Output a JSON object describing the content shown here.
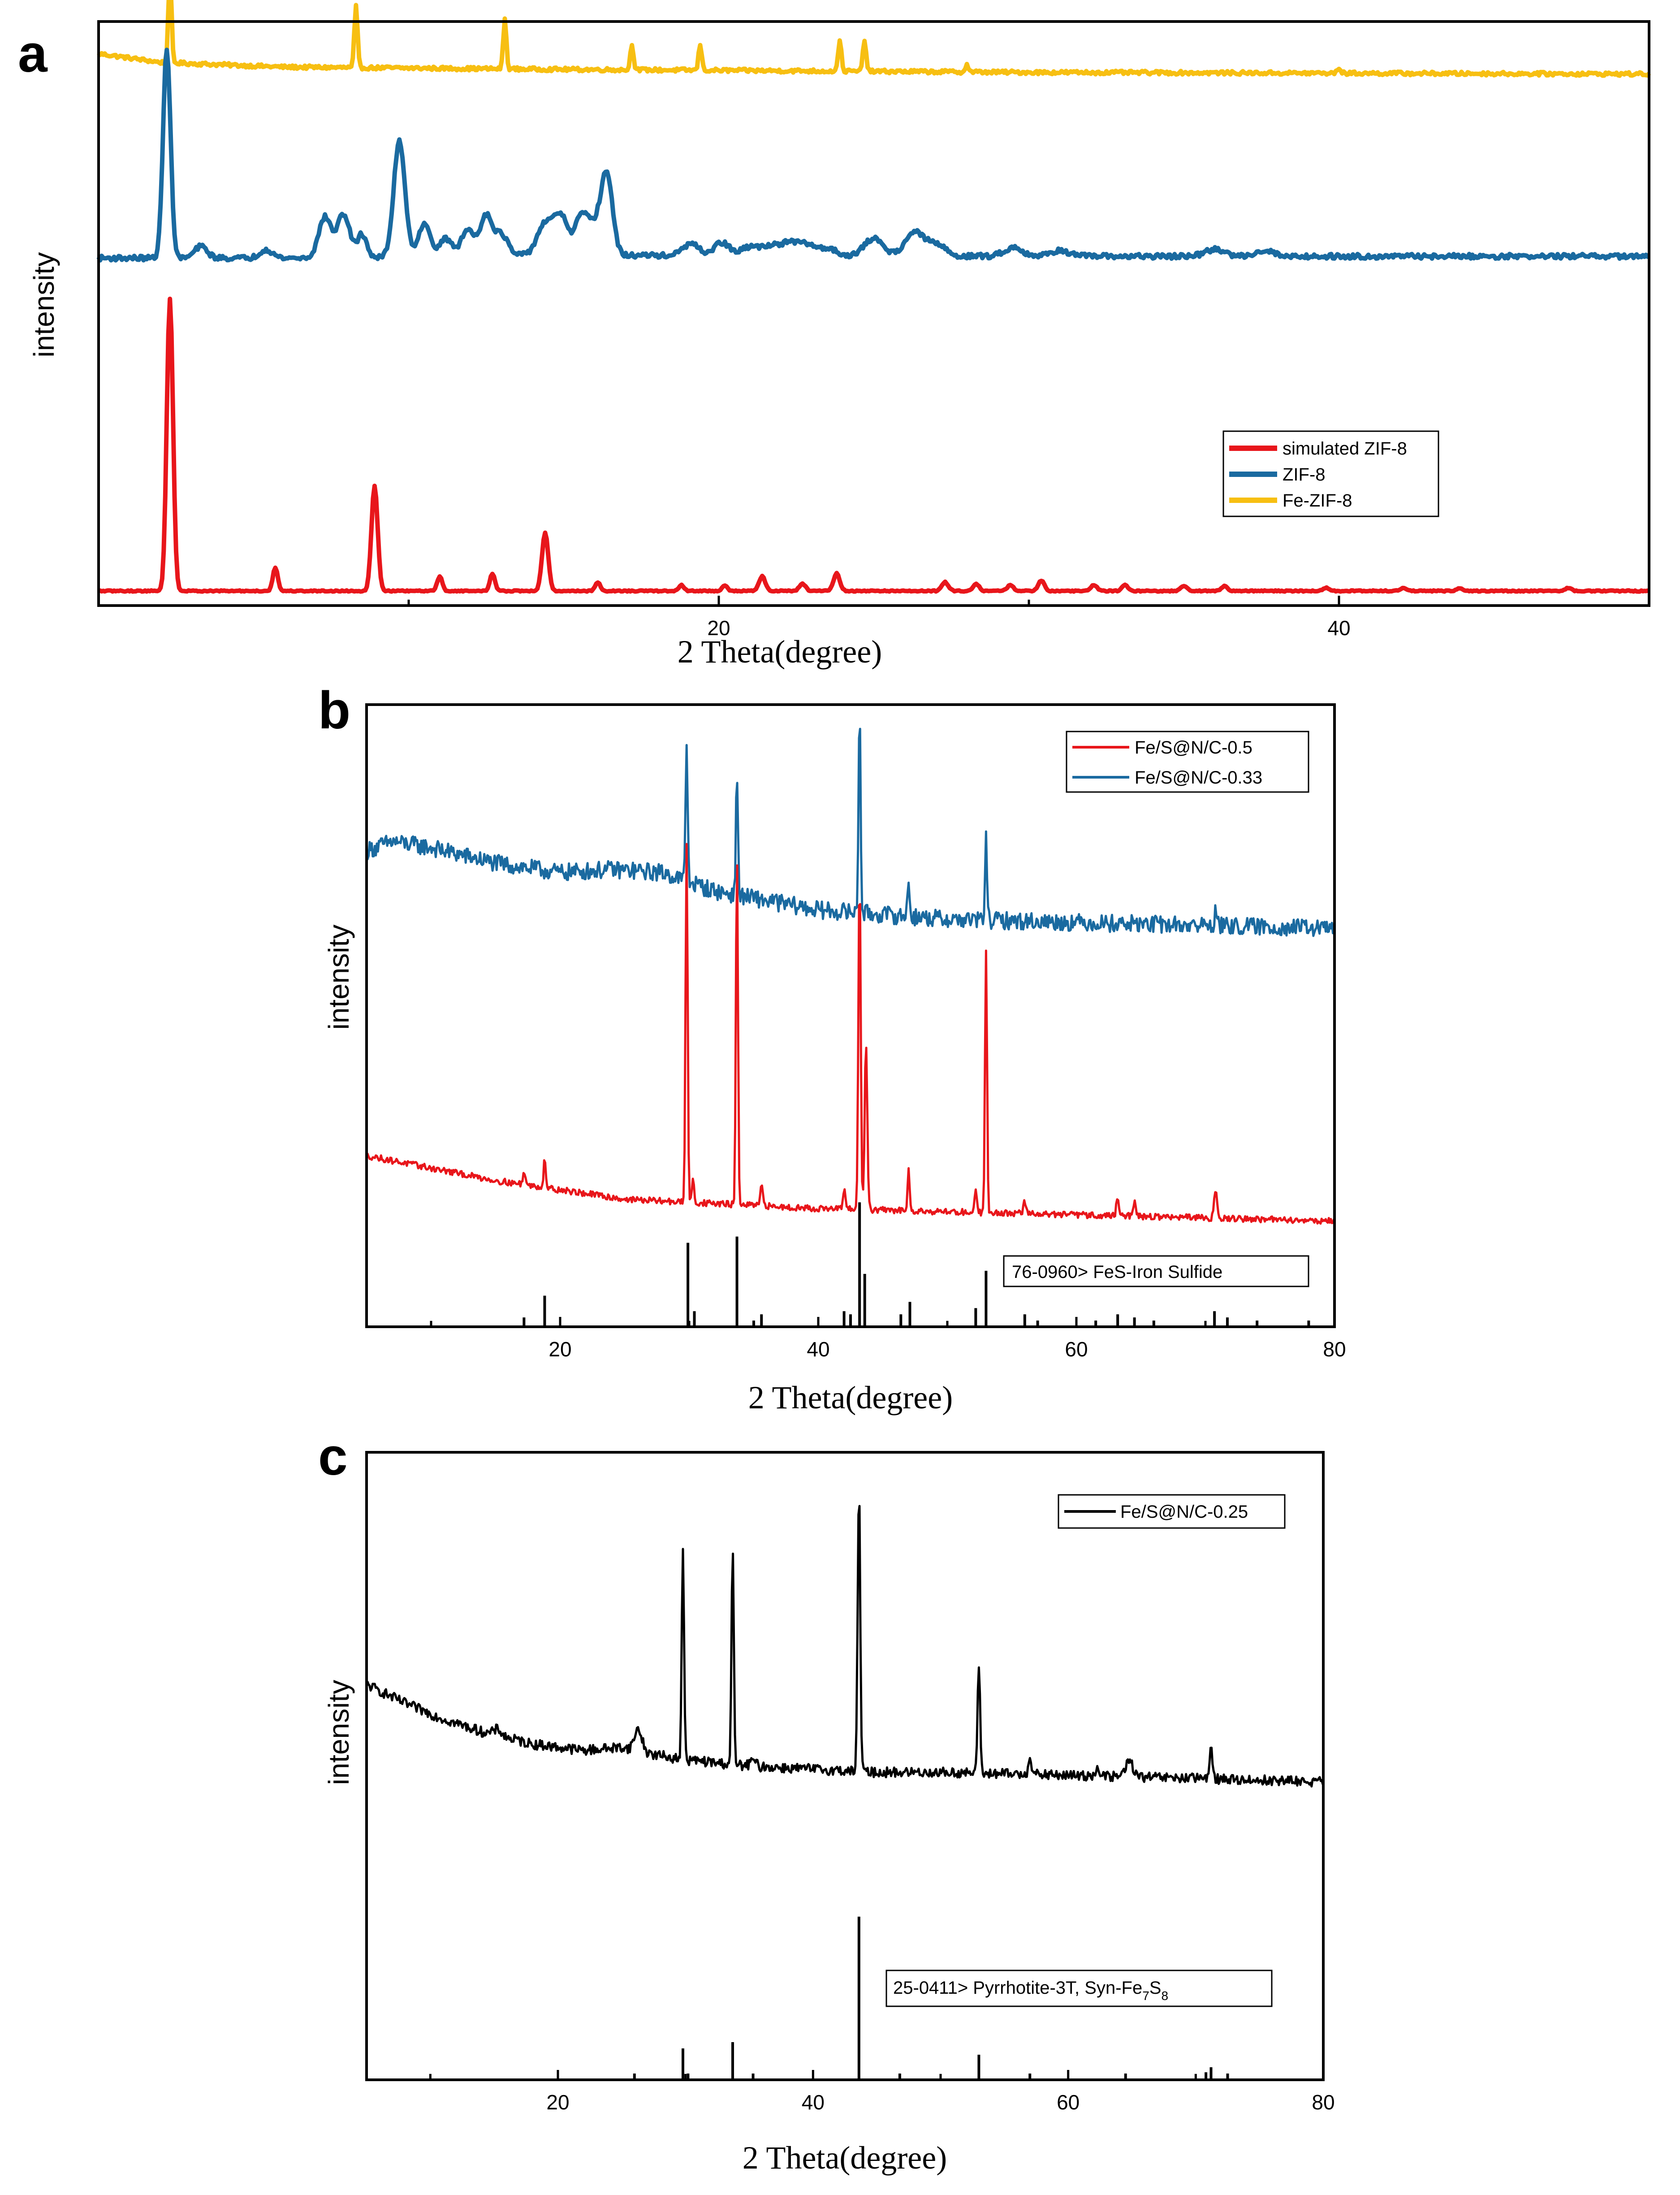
{
  "chart_data": [
    {
      "panel": "a",
      "type": "line",
      "xlabel": "2 Theta(degree)",
      "ylabel": "intensity",
      "xlim": [
        0,
        50
      ],
      "xticks": [
        20,
        40
      ],
      "tick_labels": [
        "20",
        "40"
      ],
      "legend": {
        "placement": "center-right",
        "entries": [
          {
            "label": "simulated ZIF-8",
            "color": "#e8161b"
          },
          {
            "label": "ZIF-8",
            "color": "#1a6aa0"
          },
          {
            "label": "Fe-ZIF-8",
            "color": "#f7bf12"
          }
        ]
      },
      "series": [
        {
          "name": "Fe-ZIF-8",
          "color": "#f7bf12",
          "noise": 0.003,
          "baseline": [
            [
              0,
              0.945
            ],
            [
              2,
              0.93
            ],
            [
              6,
              0.922
            ],
            [
              15,
              0.918
            ],
            [
              30,
              0.913
            ],
            [
              50,
              0.91
            ]
          ],
          "peaks": [
            [
              2.3,
              0.155,
              0.05
            ],
            [
              8.3,
              0.105,
              0.05
            ],
            [
              13.1,
              0.085,
              0.05
            ],
            [
              17.2,
              0.045,
              0.05
            ],
            [
              19.4,
              0.045,
              0.05
            ],
            [
              23.9,
              0.055,
              0.05
            ],
            [
              24.7,
              0.055,
              0.05
            ],
            [
              28.0,
              0.012,
              0.05
            ],
            [
              40.0,
              0.01,
              0.05
            ]
          ]
        },
        {
          "name": "ZIF-8",
          "color": "#1a6aa0",
          "noise": 0.004,
          "baseline": [
            [
              0,
              0.595
            ],
            [
              8,
              0.595
            ],
            [
              14,
              0.6
            ],
            [
              30,
              0.598
            ],
            [
              50,
              0.598
            ]
          ],
          "peaks": [
            [
              2.2,
              0.36,
              0.12
            ],
            [
              3.3,
              0.02,
              0.2
            ],
            [
              5.4,
              0.015,
              0.2
            ],
            [
              7.3,
              0.07,
              0.2
            ],
            [
              7.9,
              0.075,
              0.2
            ],
            [
              8.5,
              0.04,
              0.15
            ],
            [
              9.7,
              0.2,
              0.18
            ],
            [
              10.5,
              0.055,
              0.2
            ],
            [
              11.2,
              0.03,
              0.2
            ],
            [
              11.9,
              0.045,
              0.2
            ],
            [
              12.5,
              0.07,
              0.2
            ],
            [
              13.0,
              0.035,
              0.2
            ],
            [
              14.4,
              0.055,
              0.25
            ],
            [
              14.9,
              0.065,
              0.2
            ],
            [
              15.6,
              0.07,
              0.25
            ],
            [
              16.1,
              0.04,
              0.2
            ],
            [
              16.4,
              0.13,
              0.18
            ],
            [
              19.1,
              0.02,
              0.25
            ],
            [
              20.1,
              0.022,
              0.25
            ],
            [
              21.0,
              0.015,
              0.25
            ],
            [
              21.6,
              0.015,
              0.25
            ],
            [
              22.2,
              0.02,
              0.3
            ],
            [
              22.8,
              0.018,
              0.3
            ],
            [
              23.5,
              0.012,
              0.3
            ],
            [
              25.0,
              0.03,
              0.3
            ],
            [
              26.3,
              0.04,
              0.3
            ],
            [
              27.0,
              0.02,
              0.3
            ],
            [
              29.5,
              0.015,
              0.3
            ],
            [
              31.0,
              0.01,
              0.3
            ],
            [
              36.0,
              0.012,
              0.3
            ],
            [
              37.6,
              0.01,
              0.3
            ]
          ]
        },
        {
          "name": "simulated ZIF-8",
          "color": "#e8161b",
          "noise": 0.001,
          "baseline": [
            [
              0,
              0.025
            ],
            [
              50,
              0.025
            ]
          ],
          "peaks": [
            [
              2.3,
              0.5,
              0.1
            ],
            [
              5.7,
              0.04,
              0.08
            ],
            [
              8.9,
              0.18,
              0.1
            ],
            [
              11.0,
              0.025,
              0.08
            ],
            [
              12.7,
              0.03,
              0.08
            ],
            [
              14.4,
              0.1,
              0.1
            ],
            [
              16.1,
              0.015,
              0.08
            ],
            [
              18.8,
              0.01,
              0.08
            ],
            [
              20.2,
              0.01,
              0.08
            ],
            [
              21.4,
              0.025,
              0.1
            ],
            [
              22.7,
              0.012,
              0.1
            ],
            [
              23.8,
              0.03,
              0.1
            ],
            [
              27.3,
              0.015,
              0.1
            ],
            [
              28.3,
              0.012,
              0.1
            ],
            [
              29.4,
              0.01,
              0.1
            ],
            [
              30.4,
              0.018,
              0.1
            ],
            [
              32.1,
              0.01,
              0.1
            ],
            [
              33.1,
              0.01,
              0.1
            ],
            [
              35.0,
              0.008,
              0.1
            ],
            [
              36.3,
              0.008,
              0.1
            ],
            [
              39.6,
              0.005,
              0.1
            ],
            [
              42.1,
              0.005,
              0.1
            ],
            [
              43.9,
              0.005,
              0.1
            ],
            [
              47.4,
              0.005,
              0.1
            ]
          ]
        }
      ]
    },
    {
      "panel": "b",
      "type": "line",
      "xlabel": "2 Theta(degree)",
      "ylabel": "intensity",
      "xlim": [
        5,
        80
      ],
      "xticks": [
        20,
        40,
        60,
        80
      ],
      "tick_labels": [
        "20",
        "40",
        "60",
        "80"
      ],
      "legend": {
        "placement": "top-right",
        "entries": [
          {
            "label": "Fe/S@N/C-0.5",
            "color": "#e8161b"
          },
          {
            "label": "Fe/S@N/C-0.33",
            "color": "#1a6aa0"
          }
        ]
      },
      "reference_label": "76-0960>  FeS-Iron Sulfide",
      "reference_lines": [
        [
          17.2,
          0.015
        ],
        [
          18.8,
          0.05
        ],
        [
          29.9,
          0.135
        ],
        [
          30.4,
          0.025
        ],
        [
          33.7,
          0.145
        ],
        [
          35.0,
          0.01
        ],
        [
          35.6,
          0.02
        ],
        [
          42.0,
          0.025
        ],
        [
          42.5,
          0.02
        ],
        [
          43.2,
          0.2
        ],
        [
          43.6,
          0.085
        ],
        [
          46.4,
          0.02
        ],
        [
          47.1,
          0.04
        ],
        [
          52.2,
          0.03
        ],
        [
          53.0,
          0.09
        ],
        [
          56.0,
          0.02
        ],
        [
          57.0,
          0.01
        ],
        [
          61.5,
          0.01
        ],
        [
          63.2,
          0.02
        ],
        [
          64.5,
          0.015
        ],
        [
          66.0,
          0.01
        ],
        [
          70.7,
          0.025
        ],
        [
          71.7,
          0.015
        ],
        [
          74.0,
          0.01
        ],
        [
          78.0,
          0.01
        ]
      ],
      "series": [
        {
          "name": "Fe/S@N/C-0.33",
          "color": "#1a6aa0",
          "noise": 0.014,
          "baseline": [
            [
              5,
              0.765
            ],
            [
              7,
              0.78
            ],
            [
              10,
              0.77
            ],
            [
              15,
              0.745
            ],
            [
              20,
              0.73
            ],
            [
              24,
              0.735
            ],
            [
              28,
              0.73
            ],
            [
              32,
              0.7
            ],
            [
              40,
              0.67
            ],
            [
              50,
              0.655
            ],
            [
              60,
              0.65
            ],
            [
              70,
              0.645
            ],
            [
              80,
              0.64
            ]
          ],
          "peaks": [
            [
              29.8,
              0.22,
              0.08
            ],
            [
              33.7,
              0.19,
              0.08
            ],
            [
              43.2,
              0.33,
              0.08
            ],
            [
              47.0,
              0.06,
              0.08
            ],
            [
              53.0,
              0.13,
              0.08
            ],
            [
              70.8,
              0.025,
              0.1
            ]
          ]
        },
        {
          "name": "Fe/S@N/C-0.5",
          "color": "#e8161b",
          "noise": 0.005,
          "baseline": [
            [
              5,
              0.275
            ],
            [
              10,
              0.255
            ],
            [
              15,
              0.235
            ],
            [
              20,
              0.22
            ],
            [
              25,
              0.205
            ],
            [
              30,
              0.2
            ],
            [
              40,
              0.19
            ],
            [
              50,
              0.185
            ],
            [
              60,
              0.18
            ],
            [
              70,
              0.175
            ],
            [
              80,
              0.17
            ]
          ],
          "peaks": [
            [
              17.2,
              0.02,
              0.1
            ],
            [
              18.8,
              0.05,
              0.08
            ],
            [
              29.8,
              0.58,
              0.08
            ],
            [
              30.3,
              0.04,
              0.08
            ],
            [
              33.7,
              0.56,
              0.08
            ],
            [
              35.6,
              0.03,
              0.1
            ],
            [
              42.0,
              0.03,
              0.1
            ],
            [
              43.2,
              0.54,
              0.09
            ],
            [
              43.7,
              0.27,
              0.1
            ],
            [
              47.0,
              0.07,
              0.08
            ],
            [
              52.2,
              0.04,
              0.08
            ],
            [
              53.0,
              0.42,
              0.08
            ],
            [
              56.0,
              0.02,
              0.1
            ],
            [
              63.2,
              0.03,
              0.1
            ],
            [
              64.5,
              0.025,
              0.1
            ],
            [
              70.8,
              0.045,
              0.12
            ]
          ]
        }
      ]
    },
    {
      "panel": "c",
      "type": "line",
      "xlabel": "2 Theta(degree)",
      "ylabel": "intensity",
      "xlim": [
        5,
        80
      ],
      "xticks": [
        20,
        40,
        60,
        80
      ],
      "tick_labels": [
        "20",
        "40",
        "60",
        "80"
      ],
      "legend": {
        "placement": "top-right",
        "entries": [
          {
            "label": "Fe/S@N/C-0.25",
            "color": "#000000"
          }
        ]
      },
      "reference_label": {
        "prefix": "25-0411>  Pyrrhotite-3T, Syn-Fe",
        "sub1": "7",
        "mid": "S",
        "sub2": "8"
      },
      "reference_lines": [
        [
          26.0,
          0.01
        ],
        [
          29.8,
          0.05
        ],
        [
          30.2,
          0.01
        ],
        [
          33.7,
          0.06
        ],
        [
          35.3,
          0.01
        ],
        [
          43.6,
          0.26
        ],
        [
          46.8,
          0.01
        ],
        [
          53.0,
          0.04
        ],
        [
          57.0,
          0.01
        ],
        [
          64.5,
          0.01
        ],
        [
          70.8,
          0.012
        ],
        [
          71.2,
          0.02
        ],
        [
          72.5,
          0.01
        ]
      ],
      "series": [
        {
          "name": "Fe/S@N/C-0.25",
          "color": "#000000",
          "noise": 0.008,
          "baseline": [
            [
              5,
              0.63
            ],
            [
              8,
              0.6
            ],
            [
              11,
              0.575
            ],
            [
              14,
              0.555
            ],
            [
              18,
              0.535
            ],
            [
              22,
              0.525
            ],
            [
              25,
              0.53
            ],
            [
              27,
              0.52
            ],
            [
              30,
              0.51
            ],
            [
              35,
              0.5
            ],
            [
              40,
              0.495
            ],
            [
              45,
              0.49
            ],
            [
              50,
              0.49
            ],
            [
              60,
              0.485
            ],
            [
              70,
              0.48
            ],
            [
              80,
              0.475
            ]
          ],
          "peaks": [
            [
              15.3,
              0.01,
              0.3
            ],
            [
              26.3,
              0.035,
              0.3
            ],
            [
              29.8,
              0.33,
              0.09
            ],
            [
              33.7,
              0.34,
              0.09
            ],
            [
              35.3,
              0.01,
              0.2
            ],
            [
              43.6,
              0.45,
              0.1
            ],
            [
              53.0,
              0.17,
              0.1
            ],
            [
              57.0,
              0.03,
              0.12
            ],
            [
              62.3,
              0.012,
              0.2
            ],
            [
              64.8,
              0.025,
              0.3
            ],
            [
              71.2,
              0.045,
              0.14
            ]
          ]
        }
      ]
    }
  ],
  "panels": {
    "a": {
      "letter": "a"
    },
    "b": {
      "letter": "b"
    },
    "c": {
      "letter": "c"
    }
  }
}
